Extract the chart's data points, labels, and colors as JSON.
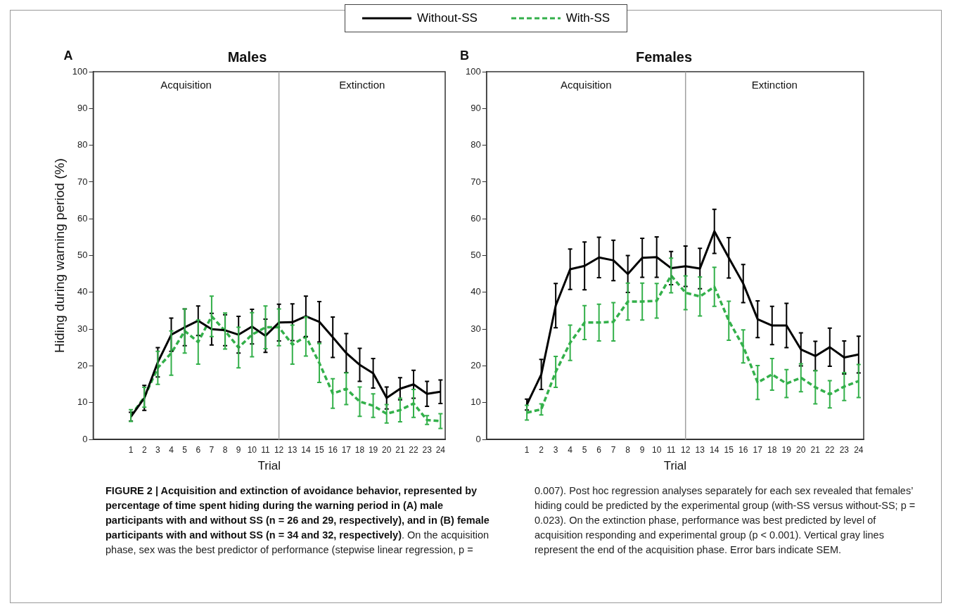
{
  "chart_data": [
    {
      "type": "line",
      "title": "Males",
      "xlabel": "Trial",
      "ylabel": "Hiding during warning period (%)",
      "legend": "top",
      "x": [
        1,
        2,
        3,
        4,
        5,
        6,
        7,
        8,
        9,
        10,
        11,
        12,
        13,
        14,
        15,
        16,
        17,
        18,
        19,
        20,
        21,
        22,
        23,
        24
      ],
      "xlim": [
        -1.8,
        24.35
      ],
      "xticks": [
        1,
        2,
        3,
        4,
        5,
        6,
        7,
        8,
        9,
        10,
        11,
        12,
        13,
        14,
        15,
        16,
        17,
        18,
        19,
        20,
        21,
        22,
        23,
        24
      ],
      "ylim": [
        0,
        100
      ],
      "yticks": [
        0,
        10,
        20,
        30,
        40,
        50,
        60,
        70,
        80,
        90,
        100
      ],
      "ref_lines": [
        {
          "axis": "x",
          "value": 12,
          "color": "#a0a0a0"
        }
      ],
      "annotations": [
        "A",
        "Acquisition",
        "Extinction",
        "FIGURE 2 | Acquisition and extinction of avoidance behavior, represented by percentage of time spent hiding during the warning period in (A) male participants with and without SS (n = 26 and 29, respectively), and in (B) female participants with and without SS (n = 34 and 32, respectively)",
        ". On the acquisition phase, sex was the best predictor of performance (stepwise linear regression, p = 0.007). Post hoc regression analyses separately for each sex revealed that females’ hiding could be predicted by the experimental group (with-SS versus without-SS; p = 0.023). On the extinction phase, performance was best predicted by level of acquisition responding and experimental group (p < 0.001). Vertical gray lines represent the end of the acquisition phase. Error bars indicate SEM."
      ],
      "series": [
        {
          "name": "Without-SS",
          "color": "#000000",
          "line_style": "solid",
          "values": [
            6.2,
            11.3,
            21,
            28.5,
            30.5,
            32.3,
            30,
            29.7,
            28.5,
            30.7,
            28.2,
            31.8,
            31.9,
            33.5,
            32,
            27.8,
            23.5,
            20.3,
            18,
            11.3,
            13.8,
            15,
            12.4,
            13
          ],
          "errors": [
            1.2,
            3.4,
            4,
            4.5,
            5,
            4,
            4.3,
            4.2,
            5,
            4.7,
            4.5,
            5,
            5,
            5.5,
            5.5,
            5.5,
            5.3,
            4.5,
            4,
            3,
            3,
            3.8,
            3.4,
            3.2
          ]
        },
        {
          "name": "With-SS",
          "color": "#33b04a",
          "line_style": "dashed",
          "values": [
            6.5,
            11.5,
            19.5,
            23.5,
            29.5,
            26.5,
            33.5,
            29.5,
            25,
            28.5,
            30.5,
            30.5,
            25.8,
            28,
            20.8,
            12.5,
            13.8,
            10.3,
            9.2,
            7,
            8,
            9.8,
            5.3,
            5
          ],
          "errors": [
            1.6,
            2.7,
            4.5,
            6,
            6,
            6,
            5.5,
            4.9,
            5.5,
            6,
            5.8,
            5,
            5.3,
            5.3,
            5.3,
            4,
            4.3,
            4,
            3.2,
            2.5,
            3.2,
            3.8,
            1.2,
            2
          ]
        }
      ]
    },
    {
      "type": "line",
      "title": "Females",
      "xlabel": "Trial",
      "x": [
        1,
        2,
        3,
        4,
        5,
        6,
        7,
        8,
        9,
        10,
        11,
        12,
        13,
        14,
        15,
        16,
        17,
        18,
        19,
        20,
        21,
        22,
        23,
        24
      ],
      "xlim": [
        -1.8,
        24.35
      ],
      "xticks": [
        1,
        2,
        3,
        4,
        5,
        6,
        7,
        8,
        9,
        10,
        11,
        12,
        13,
        14,
        15,
        16,
        17,
        18,
        19,
        20,
        21,
        22,
        23,
        24
      ],
      "ylim": [
        0,
        100
      ],
      "yticks": [
        0,
        10,
        20,
        30,
        40,
        50,
        60,
        70,
        80,
        90,
        100
      ],
      "ref_lines": [
        {
          "axis": "x",
          "value": 12,
          "color": "#a0a0a0"
        }
      ],
      "annotations": [
        "B",
        "Acquisition",
        "Extinction"
      ],
      "series": [
        {
          "color": "#000000",
          "line_style": "solid",
          "values": [
            9.5,
            17.7,
            36.4,
            46.3,
            47.2,
            49.5,
            48.7,
            45,
            49.4,
            49.6,
            46.6,
            47.1,
            46.5,
            56.6,
            49.4,
            42.4,
            32.7,
            31,
            31,
            24.5,
            22.7,
            25.1,
            22.3,
            23.1
          ],
          "errors": [
            1.5,
            4.1,
            6,
            5.5,
            6.5,
            5.5,
            5.5,
            5,
            5.3,
            5.5,
            4.5,
            5.5,
            5.5,
            6,
            5.5,
            5.2,
            5,
            5.2,
            6,
            4.5,
            4,
            5.2,
            4.5,
            5
          ]
        },
        {
          "color": "#33b04a",
          "line_style": "dashed",
          "values": [
            7.3,
            8.2,
            18.4,
            26.3,
            31.8,
            31.8,
            32,
            37.5,
            37.5,
            37.7,
            44.6,
            39.9,
            38.9,
            41.5,
            32.3,
            25.3,
            15.5,
            17.7,
            15.2,
            16.8,
            14.2,
            12.3,
            14.4,
            15.9
          ],
          "errors": [
            2,
            1.5,
            4.2,
            4.8,
            4.6,
            5,
            5.2,
            5,
            5,
            4.7,
            4.7,
            4.6,
            5.3,
            5.3,
            5.3,
            4.5,
            4.6,
            4.3,
            3.8,
            3.8,
            4.5,
            3.7,
            3.8,
            4.5
          ]
        }
      ]
    }
  ]
}
